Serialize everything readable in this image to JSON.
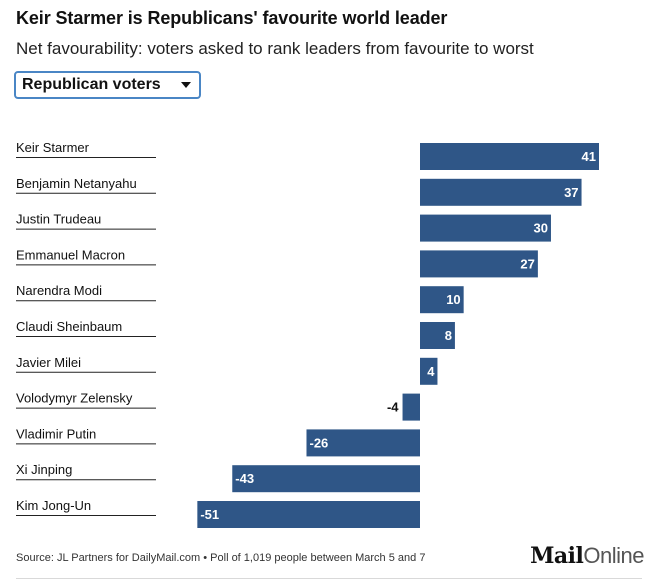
{
  "header": {
    "title": "Keir Starmer is Republicans' favourite world leader",
    "subtitle": "Net favourability: voters asked to rank leaders from favourite to worst"
  },
  "filter": {
    "selected": "Republican voters"
  },
  "chart_data": {
    "type": "bar",
    "orientation": "horizontal",
    "title": "Keir Starmer is Republicans' favourite world leader",
    "subtitle": "Net favourability: voters asked to rank leaders from favourite to worst",
    "series_name": "Republican voters",
    "categories": [
      "Keir Starmer",
      "Benjamin Netanyahu",
      "Justin Trudeau",
      "Emmanuel Macron",
      "Narendra Modi",
      "Claudi Sheinbaum",
      "Javier Milei",
      "Volodymyr Zelensky",
      "Vladimir Putin",
      "Xi Jinping",
      "Kim Jong-Un"
    ],
    "values": [
      41,
      37,
      30,
      27,
      10,
      8,
      4,
      -4,
      -26,
      -43,
      -51
    ],
    "labels": [
      "41",
      "37",
      "30",
      "27",
      "10",
      "8",
      "4",
      "-4",
      "-26",
      "-43",
      "-51"
    ],
    "xlim": [
      -51,
      41
    ],
    "bar_color": "#2f5687"
  },
  "footer": {
    "source": "Source: JL Partners for DailyMail.com • Poll of 1,019 people between March 5 and 7",
    "logo_bold": "Mail",
    "logo_light": "Online"
  }
}
